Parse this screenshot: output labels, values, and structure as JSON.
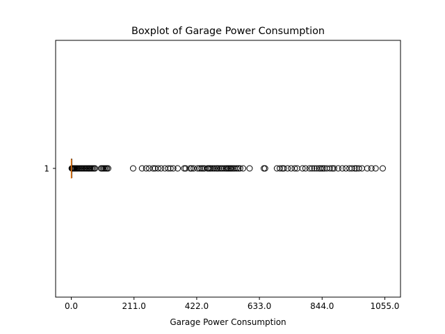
{
  "chart_data": {
    "type": "boxplot",
    "orientation": "horizontal",
    "title": "Boxplot of Garage Power Consumption",
    "xlabel": "Garage Power Consumption",
    "ylabel": "",
    "xlim": [
      -52.75,
      1107.75
    ],
    "xticks": [
      0.0,
      211.0,
      422.0,
      633.0,
      844.0,
      1055.0
    ],
    "xtick_labels": [
      "0.0",
      "211.0",
      "422.0",
      "633.0",
      "844.0",
      "1055.0"
    ],
    "categories": [
      "1"
    ],
    "grid": false,
    "legend": "none",
    "box": {
      "whisker_low": 0.0,
      "q1": 0.0,
      "median": 0.0,
      "q3": 0.6,
      "whisker_high": 1.5
    },
    "outliers": [
      1.5,
      2,
      3,
      4,
      5,
      6,
      7,
      8,
      10,
      12,
      15,
      18,
      20,
      24,
      28,
      32,
      36,
      40,
      44,
      48,
      52,
      56,
      60,
      64,
      68,
      72,
      76,
      80,
      100,
      104,
      108,
      112,
      116,
      120,
      124,
      208,
      238,
      252,
      262,
      275,
      282,
      292,
      302,
      315,
      326,
      334,
      343,
      358,
      380,
      385,
      400,
      405,
      412,
      425,
      432,
      438,
      443,
      448,
      458,
      462,
      466,
      470,
      476,
      482,
      488,
      492,
      497,
      503,
      508,
      514,
      520,
      524,
      528,
      532,
      536,
      540,
      545,
      550,
      556,
      562,
      568,
      578,
      600,
      648,
      652,
      692,
      702,
      710,
      715,
      728,
      740,
      752,
      760,
      778,
      788,
      802,
      810,
      818,
      826,
      834,
      840,
      846,
      852,
      860,
      870,
      878,
      884,
      898,
      912,
      924,
      936,
      944,
      954,
      960,
      968,
      978,
      996,
      1010,
      1024,
      1048
    ],
    "colors": {
      "median": "#ff7f0e",
      "box": "#000000",
      "outlier_edge": "#000000"
    }
  }
}
